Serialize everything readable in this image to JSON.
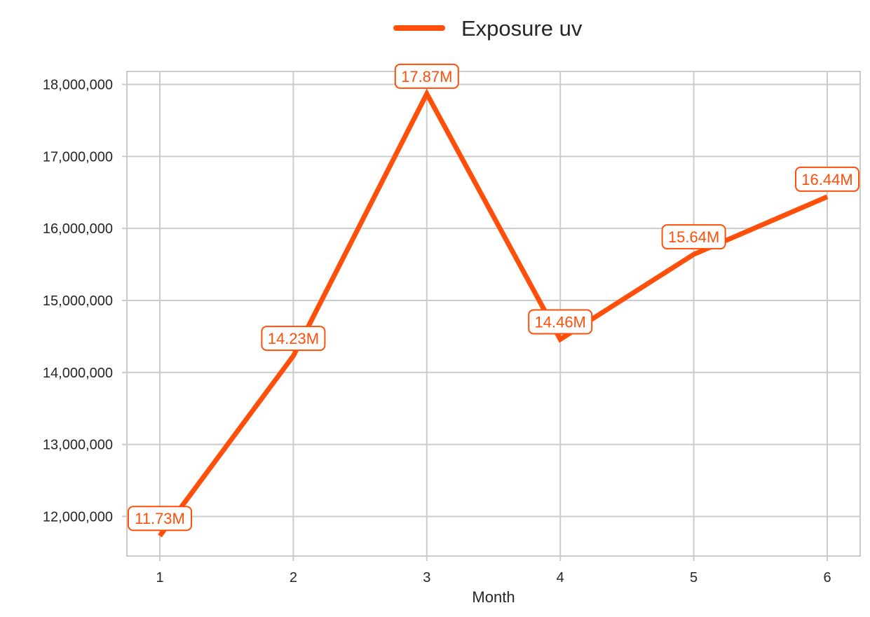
{
  "chart_data": {
    "type": "line",
    "x": [
      1,
      2,
      3,
      4,
      5,
      6
    ],
    "x_ticks": [
      "1",
      "2",
      "3",
      "4",
      "5",
      "6"
    ],
    "xlabel": "Month",
    "ylabel": "",
    "ylim": [
      11450000,
      18180000
    ],
    "y_ticks": [
      12000000,
      13000000,
      14000000,
      15000000,
      16000000,
      17000000,
      18000000
    ],
    "y_tick_labels": [
      "12,000,000",
      "13,000,000",
      "14,000,000",
      "15,000,000",
      "16,000,000",
      "17,000,000",
      "18,000,000"
    ],
    "grid": true,
    "legend_position": "top-center",
    "series": [
      {
        "name": "Exposure uv",
        "color": "#ff4f0a",
        "values": [
          11730000,
          14230000,
          17870000,
          14460000,
          15640000,
          16440000
        ],
        "data_labels": [
          "11.73M",
          "14.23M",
          "17.87M",
          "14.46M",
          "15.64M",
          "16.44M"
        ]
      }
    ]
  }
}
